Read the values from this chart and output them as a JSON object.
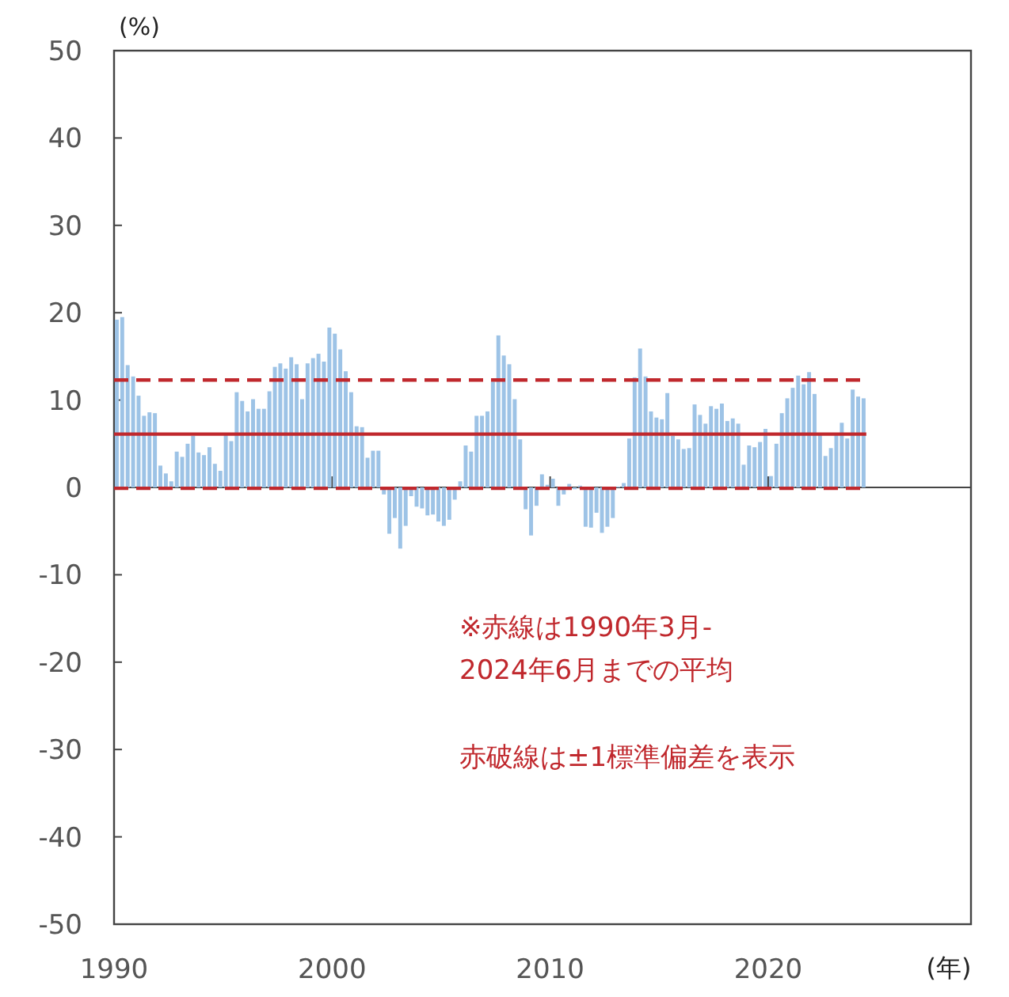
{
  "chart_data": {
    "type": "bar",
    "ylabel": "(%)",
    "xlabel": "(年)",
    "x": [
      1990.25,
      1990.5,
      1990.75,
      1991,
      1991.25,
      1991.5,
      1991.75,
      1992,
      1992.25,
      1992.5,
      1992.75,
      1993,
      1993.25,
      1993.5,
      1993.75,
      1994,
      1994.25,
      1994.5,
      1994.75,
      1995,
      1995.25,
      1995.5,
      1995.75,
      1996,
      1996.25,
      1996.5,
      1996.75,
      1997,
      1997.25,
      1997.5,
      1997.75,
      1998,
      1998.25,
      1998.5,
      1998.75,
      1999,
      1999.25,
      1999.5,
      1999.75,
      2000,
      2000.25,
      2000.5,
      2000.75,
      2001,
      2001.25,
      2001.5,
      2001.75,
      2002,
      2002.25,
      2002.5,
      2002.75,
      2003,
      2003.25,
      2003.5,
      2003.75,
      2004,
      2004.25,
      2004.5,
      2004.75,
      2005,
      2005.25,
      2005.5,
      2005.75,
      2006,
      2006.25,
      2006.5,
      2006.75,
      2007,
      2007.25,
      2007.5,
      2007.75,
      2008,
      2008.25,
      2008.5,
      2008.75,
      2009,
      2009.25,
      2009.5,
      2009.75,
      2010,
      2010.25,
      2010.5,
      2010.75,
      2011,
      2011.25,
      2011.5,
      2011.75,
      2012,
      2012.25,
      2012.5,
      2012.75,
      2013,
      2013.25,
      2013.5,
      2013.75,
      2014,
      2014.25,
      2014.5,
      2014.75,
      2015,
      2015.25,
      2015.5,
      2015.75,
      2016,
      2016.25,
      2016.5,
      2016.75,
      2017,
      2017.25,
      2017.5,
      2017.75,
      2018,
      2018.25,
      2018.5,
      2018.75,
      2019,
      2019.25,
      2019.5,
      2019.75,
      2020,
      2020.25,
      2020.5,
      2020.75,
      2021,
      2021.25,
      2021.5,
      2021.75,
      2022,
      2022.25,
      2022.5,
      2022.75,
      2023,
      2023.25,
      2023.5,
      2023.75,
      2024,
      2024.25,
      2024.5
    ],
    "values": [
      19.2,
      19.5,
      14.0,
      12.7,
      10.5,
      8.2,
      8.6,
      8.5,
      2.5,
      1.6,
      0.7,
      4.1,
      3.5,
      5.0,
      5.9,
      4.0,
      3.7,
      4.6,
      2.7,
      1.9,
      6.0,
      5.3,
      10.9,
      9.9,
      8.7,
      10.1,
      9.0,
      9.0,
      11.0,
      13.8,
      14.2,
      13.6,
      14.9,
      14.1,
      10.1,
      14.2,
      14.8,
      15.3,
      14.4,
      18.3,
      17.6,
      15.8,
      13.3,
      10.9,
      7.0,
      6.9,
      3.4,
      4.2,
      4.2,
      -0.8,
      -5.3,
      -3.5,
      -7.0,
      -4.4,
      -1.0,
      -2.2,
      -2.4,
      -3.2,
      -3.1,
      -3.9,
      -4.4,
      -3.7,
      -1.4,
      0.7,
      4.8,
      4.1,
      8.2,
      8.2,
      8.7,
      12.1,
      17.4,
      15.1,
      14.1,
      10.1,
      5.5,
      -2.5,
      -5.5,
      -2.1,
      1.5,
      0.3,
      1.0,
      -2.1,
      -0.8,
      0.4,
      -0.2,
      0.2,
      -4.5,
      -4.6,
      -2.9,
      -5.2,
      -4.5,
      -3.5,
      0.1,
      0.5,
      5.6,
      12.6,
      15.9,
      12.7,
      8.7,
      8.0,
      7.8,
      10.8,
      5.9,
      5.5,
      4.4,
      4.5,
      9.5,
      8.3,
      7.3,
      9.3,
      9.0,
      9.6,
      7.6,
      7.9,
      7.3,
      2.6,
      4.8,
      4.6,
      5.2,
      6.7,
      1.3,
      5.0,
      8.5,
      10.2,
      11.4,
      12.8,
      11.8,
      13.2,
      10.7,
      6.0,
      3.6,
      4.5,
      6.1,
      7.4,
      5.6,
      11.2,
      10.4,
      10.2
    ],
    "color": "#9dc3e6",
    "xlim": [
      1990,
      2029.3
    ],
    "xticks": [
      1990,
      2000,
      2010,
      2020
    ],
    "ylim": [
      -50,
      50
    ],
    "yticks": [
      -50,
      -40,
      -30,
      -20,
      -10,
      0,
      10,
      20,
      30,
      40,
      50
    ],
    "ref_lines": [
      {
        "axis": "y",
        "value": 6.1,
        "color": "#c0282d",
        "line_style": "solid"
      },
      {
        "axis": "y",
        "value": 12.3,
        "color": "#c0282d",
        "line_style": "dashed"
      },
      {
        "axis": "y",
        "value": -0.1,
        "color": "#c0282d",
        "line_style": "dashed"
      }
    ],
    "annotations": [
      "※赤線は1990年3月-\n2024年6月までの平均",
      "赤破線は±1標準偏差を表示"
    ]
  }
}
